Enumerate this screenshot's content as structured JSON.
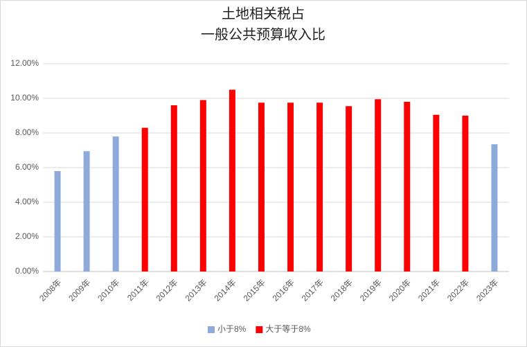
{
  "chart_data": {
    "type": "bar",
    "title": [
      "土地相关税占",
      "一般公共预算收入比"
    ],
    "categories": [
      "2008年",
      "2009年",
      "2010年",
      "2011年",
      "2012年",
      "2013年",
      "2014年",
      "2015年",
      "2016年",
      "2017年",
      "2018年",
      "2019年",
      "2020年",
      "2021年",
      "2022年",
      "2023年"
    ],
    "series": [
      {
        "name": "小于8%",
        "color": "#8eaadb",
        "values": [
          5.8,
          6.95,
          7.8,
          null,
          null,
          null,
          null,
          null,
          null,
          null,
          null,
          null,
          null,
          null,
          null,
          7.35
        ]
      },
      {
        "name": "大于等于8%",
        "color": "#ff0000",
        "values": [
          null,
          null,
          null,
          8.3,
          9.6,
          9.9,
          10.5,
          9.75,
          9.75,
          9.75,
          9.55,
          9.95,
          9.8,
          9.05,
          9.0,
          null
        ]
      }
    ],
    "ylim": [
      0,
      12
    ],
    "yticks": [
      {
        "value": 0,
        "label": "0.00%"
      },
      {
        "value": 2,
        "label": "2.00%"
      },
      {
        "value": 4,
        "label": "4.00%"
      },
      {
        "value": 6,
        "label": "6.00%"
      },
      {
        "value": 8,
        "label": "8.00%"
      },
      {
        "value": 10,
        "label": "10.00%"
      },
      {
        "value": 12,
        "label": "12.00%"
      }
    ],
    "grid": true,
    "legend": "bottom"
  }
}
